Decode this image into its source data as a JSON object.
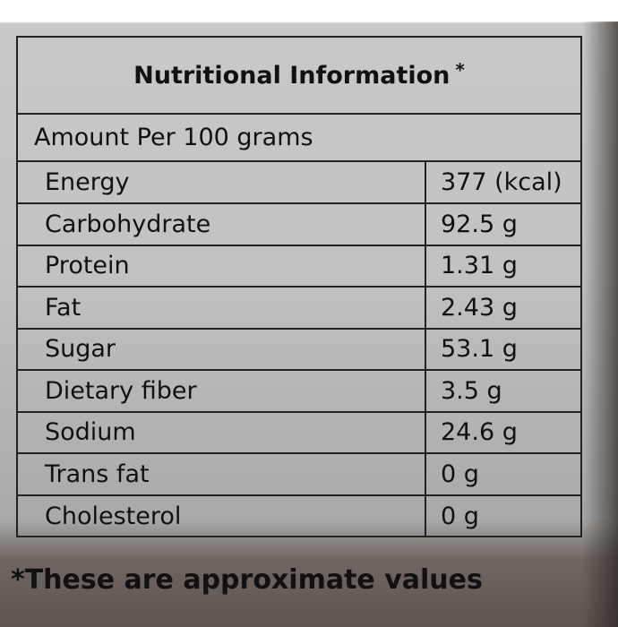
{
  "header": {
    "title": "Nutritional Information",
    "title_mark": "*"
  },
  "table": {
    "caption": "Amount Per 100 grams",
    "rows": [
      [
        "Energy",
        "377 (kcal)"
      ],
      [
        "Carbohydrate",
        "92.5 g"
      ],
      [
        "Protein",
        "1.31 g"
      ],
      [
        "Fat",
        "2.43 g"
      ],
      [
        "Sugar",
        "53.1 g"
      ],
      [
        "Dietary fiber",
        "3.5 g"
      ],
      [
        "Sodium",
        "24.6 g"
      ],
      [
        "Trans fat",
        "0 g"
      ],
      [
        "Cholesterol",
        "0 g"
      ]
    ]
  },
  "footer": {
    "note": "*These are approximate values"
  }
}
